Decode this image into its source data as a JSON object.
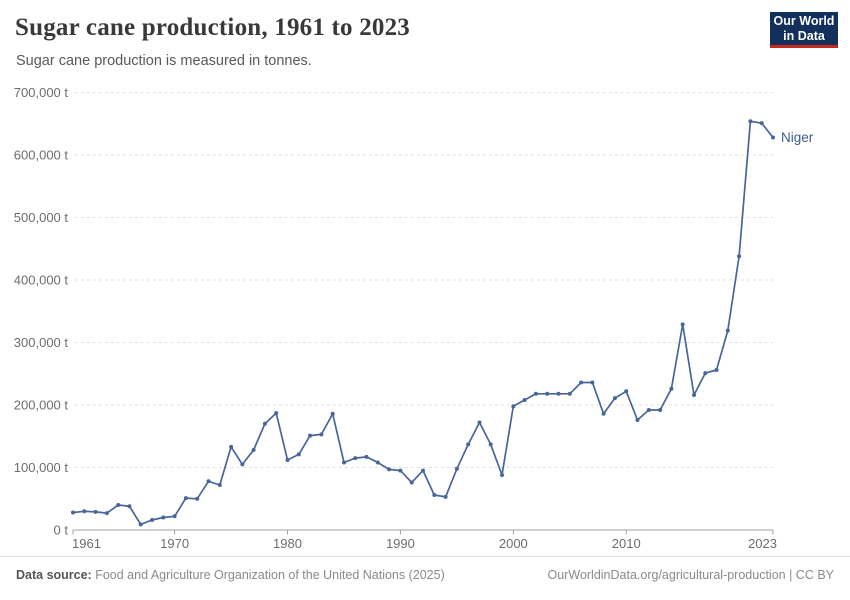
{
  "header": {
    "title": "Sugar cane production, 1961 to 2023",
    "subtitle": "Sugar cane production is measured in tonnes."
  },
  "logo": {
    "line1": "Our World",
    "line2": "in Data"
  },
  "chart_data": {
    "type": "line",
    "title": "Sugar cane production, 1961 to 2023",
    "unit": "t",
    "entity_label": "Niger",
    "grid": true,
    "legend_position": "end-of-line",
    "ylim": [
      0,
      700000
    ],
    "x": [
      1961,
      1962,
      1963,
      1964,
      1965,
      1966,
      1967,
      1968,
      1969,
      1970,
      1971,
      1972,
      1973,
      1974,
      1975,
      1976,
      1977,
      1978,
      1979,
      1980,
      1981,
      1982,
      1983,
      1984,
      1985,
      1986,
      1987,
      1988,
      1989,
      1990,
      1991,
      1992,
      1993,
      1994,
      1995,
      1996,
      1997,
      1998,
      1999,
      2000,
      2001,
      2002,
      2003,
      2004,
      2005,
      2006,
      2007,
      2008,
      2009,
      2010,
      2011,
      2012,
      2013,
      2014,
      2015,
      2016,
      2017,
      2018,
      2019,
      2020,
      2021,
      2022,
      2023
    ],
    "series": [
      {
        "name": "Niger",
        "values": [
          28000,
          30000,
          29000,
          27000,
          40000,
          38000,
          9000,
          16000,
          20000,
          22000,
          51000,
          50000,
          78000,
          72000,
          133000,
          105000,
          128000,
          170000,
          187000,
          112000,
          121000,
          151000,
          153000,
          186000,
          108000,
          115000,
          117000,
          108000,
          97000,
          95000,
          76000,
          95000,
          56000,
          53000,
          98000,
          137000,
          172000,
          137000,
          88000,
          198000,
          208000,
          218000,
          218000,
          218000,
          218000,
          236000,
          236000,
          186000,
          211000,
          222000,
          176000,
          192000,
          192000,
          226000,
          329000,
          216000,
          251000,
          256000,
          319000,
          438000,
          654000,
          651000,
          628000
        ]
      }
    ],
    "y_ticks": [
      {
        "value": 0,
        "label": "0 t"
      },
      {
        "value": 100000,
        "label": "100,000 t"
      },
      {
        "value": 200000,
        "label": "200,000 t"
      },
      {
        "value": 300000,
        "label": "300,000 t"
      },
      {
        "value": 400000,
        "label": "400,000 t"
      },
      {
        "value": 500000,
        "label": "500,000 t"
      },
      {
        "value": 600000,
        "label": "600,000 t"
      },
      {
        "value": 700000,
        "label": "700,000 t"
      }
    ],
    "x_ticks": [
      {
        "value": 1961,
        "label": "1961"
      },
      {
        "value": 1970,
        "label": "1970"
      },
      {
        "value": 1980,
        "label": "1980"
      },
      {
        "value": 1990,
        "label": "1990"
      },
      {
        "value": 2000,
        "label": "2000"
      },
      {
        "value": 2010,
        "label": "2010"
      },
      {
        "value": 2023,
        "label": "2023"
      }
    ]
  },
  "colors": {
    "line": "#486699",
    "entity_label": "#3d5a8f",
    "grid": "#dbdbdb",
    "axis": "#a1a1a1",
    "tick_text": "#6d6d6d",
    "logo_bg": "#12305b",
    "logo_stripe": "#c5281c"
  },
  "footer": {
    "source_label": "Data source:",
    "source_text": "Food and Agriculture Organization of the United Nations (2025)",
    "license": "OurWorldinData.org/agricultural-production | CC BY"
  }
}
